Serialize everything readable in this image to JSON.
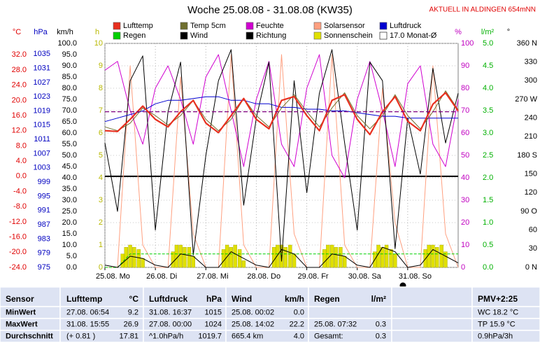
{
  "chart_data": {
    "type": "line",
    "title": "Woche 25.08.08 - 31.08.08 (KW35)",
    "note": "AKTUELL IN ALDINGEN 654mNN",
    "xlim": [
      0,
      7
    ],
    "xticks": [
      {
        "value": 0,
        "label": "25.08. Mo"
      },
      {
        "value": 1,
        "label": "26.08. Di"
      },
      {
        "value": 2,
        "label": "27.08. Mi"
      },
      {
        "value": 3,
        "label": "28.08. Do"
      },
      {
        "value": 4,
        "label": "29.08. Fr"
      },
      {
        "value": 5,
        "label": "30.08. Sa"
      },
      {
        "value": 6,
        "label": "31.08. So"
      }
    ],
    "x": [
      0,
      0.25,
      0.5,
      0.75,
      1,
      1.25,
      1.5,
      1.75,
      2,
      2.25,
      2.5,
      2.75,
      3,
      3.25,
      3.5,
      3.75,
      4,
      4.25,
      4.5,
      4.75,
      5,
      5.25,
      5.5,
      5.75,
      6,
      6.25,
      6.5,
      6.75,
      7
    ],
    "grid": true,
    "axes": [
      {
        "label": "°C",
        "color": "#e00000",
        "lim": [
          -24,
          35
        ],
        "ticks": [
          {
            "value": -24,
            "label": "-24.0"
          },
          {
            "value": -20,
            "label": "-20.0"
          },
          {
            "value": -16,
            "label": "-16.0"
          },
          {
            "value": -12,
            "label": "-12.0"
          },
          {
            "value": -8,
            "label": "-8.0"
          },
          {
            "value": -4,
            "label": "-4.0"
          },
          {
            "value": 0,
            "label": "0.0"
          },
          {
            "value": 4,
            "label": "4.0"
          },
          {
            "value": 8,
            "label": "8.0"
          },
          {
            "value": 12,
            "label": "12.0"
          },
          {
            "value": 16,
            "label": "16.0"
          },
          {
            "value": 20,
            "label": "20.0"
          },
          {
            "value": 24,
            "label": "24.0"
          },
          {
            "value": 28,
            "label": "28.0"
          },
          {
            "value": 32,
            "label": "32.0"
          }
        ]
      },
      {
        "label": "hPa",
        "color": "#0000c0",
        "lim": [
          975,
          1038
        ],
        "ticks": [
          975,
          979,
          983,
          987,
          991,
          995,
          999,
          1003,
          1007,
          1011,
          1015,
          1019,
          1023,
          1027,
          1031,
          1035
        ]
      },
      {
        "label": "km/h",
        "color": "#000000",
        "lim": [
          0,
          100
        ],
        "ticks": [
          {
            "value": 0,
            "label": "0.0"
          },
          {
            "value": 5,
            "label": "5.0"
          },
          {
            "value": 10,
            "label": "10.0"
          },
          {
            "value": 15,
            "label": "15.0"
          },
          {
            "value": 20,
            "label": "20.0"
          },
          {
            "value": 25,
            "label": "25.0"
          },
          {
            "value": 30,
            "label": "30.0"
          },
          {
            "value": 35,
            "label": "35.0"
          },
          {
            "value": 40,
            "label": "40.0"
          },
          {
            "value": 45,
            "label": "45.0"
          },
          {
            "value": 50,
            "label": "50.0"
          },
          {
            "value": 55,
            "label": "55.0"
          },
          {
            "value": 60,
            "label": "60.0"
          },
          {
            "value": 65,
            "label": "65.0"
          },
          {
            "value": 70,
            "label": "70.0"
          },
          {
            "value": 75,
            "label": "75.0"
          },
          {
            "value": 80,
            "label": "80.0"
          },
          {
            "value": 85,
            "label": "85.0"
          },
          {
            "value": 90,
            "label": "90.0"
          },
          {
            "value": 95,
            "label": "95.0"
          },
          {
            "value": 100,
            "label": "100.0"
          }
        ]
      },
      {
        "label": "h",
        "color": "#b8b800",
        "lim": [
          0,
          10
        ],
        "ticks": [
          0,
          1,
          2,
          3,
          4,
          5,
          6,
          7,
          8,
          9,
          10
        ]
      },
      {
        "label": "%",
        "color": "#c000c0",
        "lim": [
          0,
          100
        ],
        "ticks": [
          0,
          10,
          20,
          30,
          40,
          50,
          60,
          70,
          80,
          90,
          100
        ]
      },
      {
        "label": "l/m²",
        "color": "#00b000",
        "lim": [
          0,
          5
        ],
        "ticks": [
          {
            "value": 0,
            "label": "0.0"
          },
          {
            "value": 0.5,
            "label": "0.5"
          },
          {
            "value": 1,
            "label": "1.0"
          },
          {
            "value": 1.5,
            "label": "1.5"
          },
          {
            "value": 2,
            "label": "2.0"
          },
          {
            "value": 2.5,
            "label": "2.5"
          },
          {
            "value": 3,
            "label": "3.0"
          },
          {
            "value": 3.5,
            "label": "3.5"
          },
          {
            "value": 4,
            "label": "4.0"
          },
          {
            "value": 4.5,
            "label": "4.5"
          },
          {
            "value": 5,
            "label": "5.0"
          }
        ]
      },
      {
        "label": "°",
        "color": "#000000",
        "lim": [
          0,
          360
        ],
        "ticks": [
          {
            "value": 0,
            "label": "0  N"
          },
          30,
          60,
          {
            "value": 90,
            "label": "90  O"
          },
          120,
          150,
          {
            "value": 180,
            "label": "180  S"
          },
          210,
          240,
          {
            "value": 270,
            "label": "270  W"
          },
          300,
          330,
          {
            "value": 360,
            "label": "360  N"
          }
        ]
      }
    ],
    "series": [
      {
        "name": "Lufttemp",
        "color": "#e83020",
        "axis": 0,
        "width": 2.2,
        "values": [
          12,
          11.8,
          15,
          18.5,
          15,
          13,
          17,
          20,
          14,
          11.5,
          16,
          20.5,
          15,
          12.5,
          20,
          21,
          16,
          12,
          20,
          21.5,
          15,
          11,
          17,
          21,
          14.5,
          12,
          19,
          22,
          17.2
        ]
      },
      {
        "name": "Temp 5cm",
        "color": "#707030",
        "axis": 0,
        "width": 1,
        "values": [
          13,
          12,
          14,
          18,
          16,
          13.5,
          16,
          20,
          15,
          12,
          15,
          20.5,
          16,
          13,
          18,
          21.5,
          17,
          13,
          18,
          22,
          16,
          12.5,
          16,
          21.5,
          16,
          12.5,
          17,
          22.5,
          17.5
        ]
      },
      {
        "name": "Feuchte",
        "color": "#d000d0",
        "axis": 4,
        "width": 1,
        "values": [
          88,
          92,
          70,
          55,
          80,
          90,
          75,
          55,
          85,
          95,
          70,
          45,
          75,
          92,
          55,
          45,
          80,
          95,
          50,
          40,
          75,
          92,
          70,
          45,
          82,
          90,
          55,
          45,
          75
        ]
      },
      {
        "name": "Solarsensor",
        "color": "#ffa080",
        "axis": 4,
        "width": 1,
        "values": [
          0,
          0,
          90,
          10,
          0,
          0,
          85,
          15,
          0,
          0,
          95,
          10,
          0,
          0,
          95,
          15,
          0,
          0,
          95,
          10,
          0,
          0,
          80,
          20,
          0,
          0,
          90,
          15,
          0
        ]
      },
      {
        "name": "Luftdruck",
        "color": "#0000d0",
        "axis": 1,
        "width": 1,
        "values": [
          1016,
          1017,
          1018,
          1019,
          1021,
          1022,
          1022,
          1022.5,
          1023,
          1023,
          1022,
          1022,
          1021,
          1021,
          1020,
          1020,
          1019.5,
          1019.5,
          1019,
          1019,
          1018.5,
          1018,
          1017.5,
          1017.5,
          1017,
          1017,
          1017,
          1017,
          1017
        ]
      },
      {
        "name": "Regen",
        "color": "#00d000",
        "axis": 5,
        "width": 1,
        "dash": true,
        "values": [
          0,
          0,
          0.3,
          0.3,
          0.3,
          0.3,
          0.3,
          0.3,
          0.3,
          0.3,
          0.3,
          0.3,
          0.3,
          0.3,
          0.3,
          0.3,
          0.3,
          0.3,
          0.3,
          0.3,
          0.3,
          0.3,
          0.3,
          0.3,
          0.3,
          0.3,
          0.3,
          0.3,
          0.3
        ]
      },
      {
        "name": "Wind",
        "color": "#000000",
        "axis": 2,
        "width": 1,
        "values": [
          1,
          0,
          5,
          4,
          1,
          0,
          6,
          5,
          0,
          0,
          7,
          4,
          1,
          0,
          8,
          6,
          0,
          0,
          6,
          5,
          1,
          0,
          9,
          7,
          0,
          1,
          8,
          5,
          2
        ]
      },
      {
        "name": "Richtung",
        "color": "#000000",
        "axis": 6,
        "width": 1,
        "values": [
          200,
          90,
          300,
          340,
          60,
          250,
          330,
          20,
          180,
          300,
          350,
          100,
          240,
          330,
          10,
          300,
          120,
          280,
          350,
          200,
          60,
          330,
          300,
          30,
          240,
          150,
          320,
          200,
          280
        ]
      },
      {
        "name": "Sonnenschein",
        "color": "#e0e000",
        "axis": 3,
        "bars": true,
        "x": [
          0.35,
          0.42,
          0.5,
          0.58,
          0.67,
          0.75,
          1.35,
          1.42,
          1.5,
          1.58,
          1.67,
          1.75,
          2.35,
          2.42,
          2.5,
          2.58,
          2.67,
          2.75,
          3.35,
          3.42,
          3.5,
          3.58,
          3.67,
          3.75,
          4.35,
          4.42,
          4.5,
          4.58,
          4.67,
          4.75,
          5.35,
          5.42,
          5.5,
          5.58,
          5.67,
          5.75,
          6.35,
          6.42,
          6.5,
          6.58,
          6.67,
          6.75
        ],
        "values": [
          0.6,
          0.9,
          1.0,
          0.9,
          0.8,
          0.4,
          0.7,
          1.0,
          1.0,
          0.9,
          0.9,
          0.5,
          0.8,
          1.0,
          0.9,
          1.0,
          0.8,
          0.3,
          0.9,
          1.0,
          1.0,
          0.9,
          1.0,
          0.6,
          0.8,
          1.0,
          1.0,
          0.9,
          0.9,
          0.5,
          0.7,
          1.0,
          0.9,
          1.0,
          0.8,
          0.6,
          0.8,
          1.0,
          1.0,
          0.9,
          1.0,
          0.7
        ]
      }
    ],
    "reference": {
      "name": "17.0 Monat-Ø",
      "value": 17,
      "axis": 0,
      "color": "#800080"
    }
  },
  "table": {
    "header": [
      "Sensor",
      "Lufttemp",
      "°C",
      "Luftdruck",
      "hPa",
      "Wind",
      "km/h",
      "Regen",
      "l/m²",
      "PMV+2:25"
    ],
    "rows": [
      [
        "MinWert",
        "27.08.  06:54",
        "9.2",
        "31.08.  16:37",
        "1015",
        "25.08.  00:02",
        "0.0",
        null,
        null,
        "WC 18.2 °C"
      ],
      [
        "MaxWert",
        "31.08.  15:55",
        "26.9",
        "27.08.  00:00",
        "1024",
        "25.08.  14:02",
        "22.2",
        "25.08.  07:32",
        "0.3",
        "TP 15.9 °C"
      ],
      [
        "Durchschnitt",
        "(+ 0.81 )",
        "17.81",
        "^1.0hPa/h",
        "1019.7",
        "665.4 km",
        "4.0",
        "Gesamt:",
        "0.3",
        "0.9hPa/3h"
      ]
    ]
  }
}
